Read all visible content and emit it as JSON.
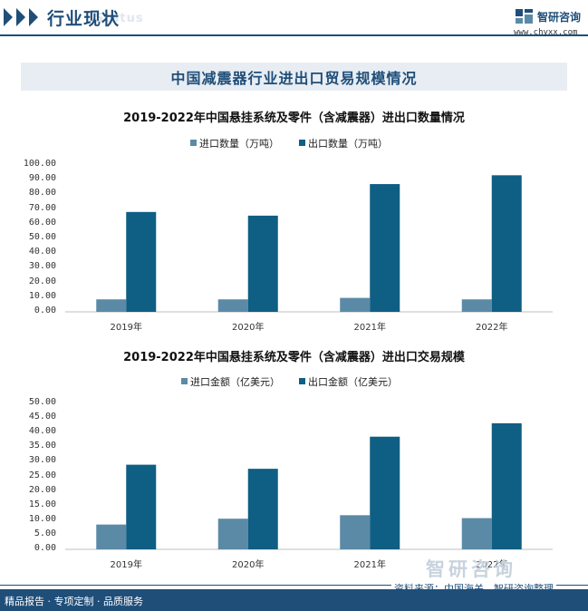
{
  "header": {
    "title": "行业现状",
    "ghost_text": "Status"
  },
  "brand": {
    "name": "智研咨询",
    "url": "www.chyxx.com"
  },
  "banner": {
    "title": "中国减震器行业进出口贸易规模情况"
  },
  "watermark": "智研咨询",
  "colors": {
    "import": "#5b8aa6",
    "export": "#0f5e84",
    "brand": "#1f4e79"
  },
  "chart_data": [
    {
      "type": "bar",
      "title": "2019-2022年中国悬挂系统及零件（含减震器）进出口数量情况",
      "categories": [
        "2019年",
        "2020年",
        "2021年",
        "2022年"
      ],
      "series": [
        {
          "name": "进口数量（万吨）",
          "values": [
            8.5,
            8.5,
            9.5,
            8.5
          ]
        },
        {
          "name": "出口数量（万吨）",
          "values": [
            68,
            65.5,
            87,
            93
          ]
        }
      ],
      "ylim": [
        0,
        100
      ],
      "yticks": [
        "100.00",
        "90.00",
        "80.00",
        "70.00",
        "60.00",
        "50.00",
        "40.00",
        "30.00",
        "20.00",
        "10.00",
        "0.00"
      ],
      "legend": "top-center",
      "grid": false
    },
    {
      "type": "bar",
      "title": "2019-2022年中国悬挂系统及零件（含减震器）进出口交易规模",
      "categories": [
        "2019年",
        "2020年",
        "2021年",
        "2022年"
      ],
      "series": [
        {
          "name": "进口金额（亿美元）",
          "values": [
            8.5,
            10.5,
            11.7,
            10.7
          ]
        },
        {
          "name": "出口金额（亿美元）",
          "values": [
            29,
            27.6,
            38.6,
            43.2
          ]
        }
      ],
      "ylim": [
        0,
        50
      ],
      "yticks": [
        "50.00",
        "45.00",
        "40.00",
        "35.00",
        "30.00",
        "25.00",
        "20.00",
        "15.00",
        "10.00",
        "5.00",
        "0.00"
      ],
      "legend": "top-center",
      "grid": false
    }
  ],
  "footer": {
    "left": "精品报告 · 专项定制 · 品质服务",
    "source": "资料来源：中国海关、智研咨询整理"
  }
}
